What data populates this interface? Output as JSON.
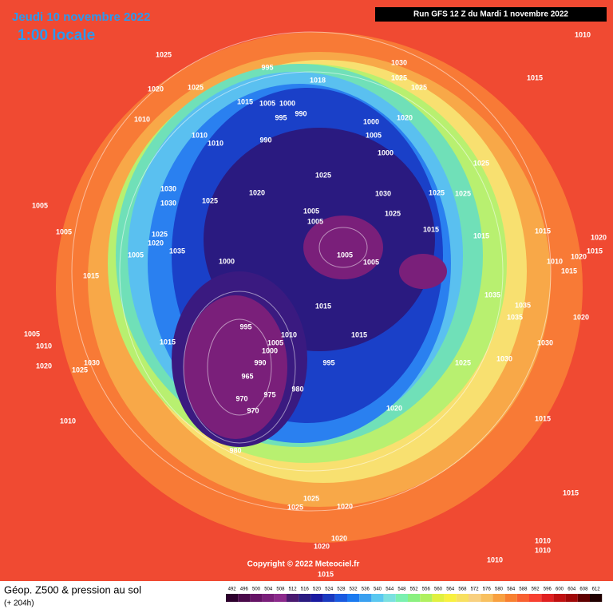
{
  "header": {
    "date": "Jeudi 10 novembre 2022",
    "time": "1:00 locale",
    "run": "Run GFS 12 Z du Mardi 1 novembre 2022"
  },
  "copyright": "Copyright © 2022 Meteociel.fr",
  "footer": {
    "title": "Géop. Z500 & pression au sol",
    "lead": "(+ 204h)"
  },
  "pressure_labels": [
    1010,
    1025,
    995,
    1030,
    1025,
    1015,
    1020,
    1025,
    1018,
    1025,
    1015,
    1005,
    1000,
    995,
    990,
    1010,
    1020,
    1000,
    1005,
    1010,
    1010,
    990,
    1000,
    1025,
    1025,
    1030,
    1030,
    1025,
    1020,
    1030,
    1025,
    1025,
    1005,
    1005,
    1025,
    1005,
    1005,
    1025,
    1015,
    1015,
    1015,
    1020,
    1020,
    1035,
    1005,
    1015,
    1020,
    1000,
    1005,
    1005,
    1010,
    1015,
    1015,
    1035,
    1015,
    1035,
    1035,
    1020,
    995,
    1015,
    1010,
    1005,
    1000,
    990,
    995,
    1030,
    1025,
    1015,
    1030,
    1005,
    1010,
    1020,
    1025,
    1030,
    965,
    980,
    975,
    970,
    970,
    1020,
    1015,
    1010,
    980,
    1025,
    1020,
    1025,
    1015,
    1020,
    1020,
    1010,
    1010,
    1015,
    1010
  ],
  "scale": {
    "values": [
      492,
      496,
      500,
      504,
      508,
      512,
      516,
      520,
      524,
      528,
      532,
      536,
      540,
      544,
      548,
      552,
      556,
      560,
      564,
      568,
      572,
      576,
      580,
      584,
      588,
      592,
      596,
      600,
      604,
      608,
      612
    ],
    "colors": [
      "#2d002d",
      "#4a0a4a",
      "#661466",
      "#7a1f7a",
      "#8c2a8c",
      "#4a1a70",
      "#2a1a80",
      "#1a1aa0",
      "#1a3ac0",
      "#1a5ae0",
      "#1a7af0",
      "#3aa0f0",
      "#5ac8f0",
      "#7ae0e0",
      "#7af0b0",
      "#8af080",
      "#b0f060",
      "#e0f040",
      "#f8f040",
      "#f8e060",
      "#f8d080",
      "#f8c060",
      "#f8a040",
      "#f88030",
      "#f86030",
      "#f84030",
      "#e02020",
      "#c01010",
      "#a00808",
      "#600000",
      "#200000"
    ]
  }
}
